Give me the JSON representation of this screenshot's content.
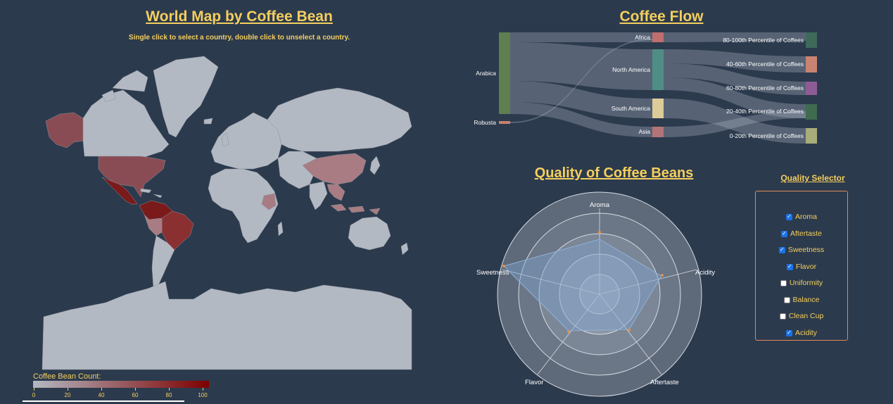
{
  "map": {
    "title": "World Map by Coffee Bean",
    "instructions": "Single click to select a country, double click to unselect a country.",
    "legend": {
      "title": "Coffee Bean Count:",
      "ticks": [
        "0",
        "20",
        "40",
        "60",
        "80",
        "100"
      ],
      "color_min": "#b3b9c3",
      "color_max": "#7e0000"
    }
  },
  "flow": {
    "title": "Coffee Flow",
    "species": [
      "Arabica",
      "Robusta"
    ],
    "regions": [
      "Africa",
      "North America",
      "South America",
      "Asia"
    ],
    "percentiles": [
      "80-100th Percentile of Coffees",
      "40-60th Percentile of Coffees",
      "60-80th Percentile of Coffees",
      "20-40th Percentile of Coffees",
      "0-20th Percentile of Coffees"
    ],
    "colors": {
      "Arabica": "#5e7f4f",
      "Robusta": "#c7816e",
      "Africa": "#c06e6e",
      "North America": "#4f8e86",
      "South America": "#dccc98",
      "Asia": "#b27477",
      "p80": "#3e6a5a",
      "p40": "#c98373",
      "p60": "#8e5b97",
      "p20": "#3f6b4e",
      "p0": "#a8ad7a"
    }
  },
  "quality": {
    "title": "Quality of Coffee Beans",
    "axes": [
      "Aroma",
      "Acidity",
      "Aftertaste",
      "Flavor",
      "Sweetness"
    ]
  },
  "selector": {
    "title": "Quality Selector",
    "items": [
      {
        "label": "Aroma",
        "checked": true
      },
      {
        "label": "Aftertaste",
        "checked": true
      },
      {
        "label": "Sweetness",
        "checked": true
      },
      {
        "label": "Flavor",
        "checked": true
      },
      {
        "label": "Uniformity",
        "checked": false
      },
      {
        "label": "Balance",
        "checked": false
      },
      {
        "label": "Clean Cup",
        "checked": false
      },
      {
        "label": "Acidity",
        "checked": true
      }
    ]
  }
}
